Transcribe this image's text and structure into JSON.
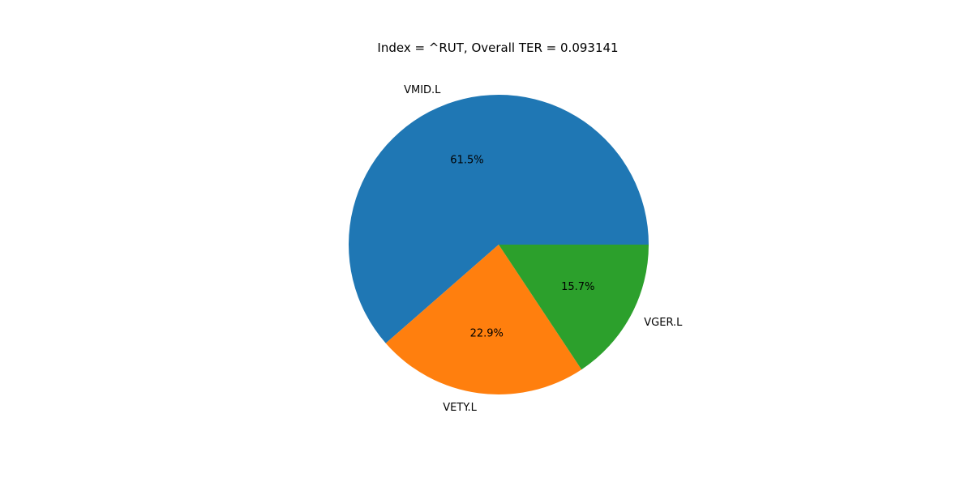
{
  "chart_data": {
    "type": "pie",
    "title": "Index = ^RUT, Overall TER = 0.093141",
    "start_angle_deg": 0,
    "direction": "counterclockwise",
    "slices": [
      {
        "label": "VMID.L",
        "value": 61.5,
        "pct_label": "61.5%",
        "color": "#1f77b4"
      },
      {
        "label": "VETY.L",
        "value": 22.9,
        "pct_label": "22.9%",
        "color": "#ff7f0e"
      },
      {
        "label": "VGER.L",
        "value": 15.7,
        "pct_label": "15.7%",
        "color": "#2ca02c"
      }
    ]
  }
}
